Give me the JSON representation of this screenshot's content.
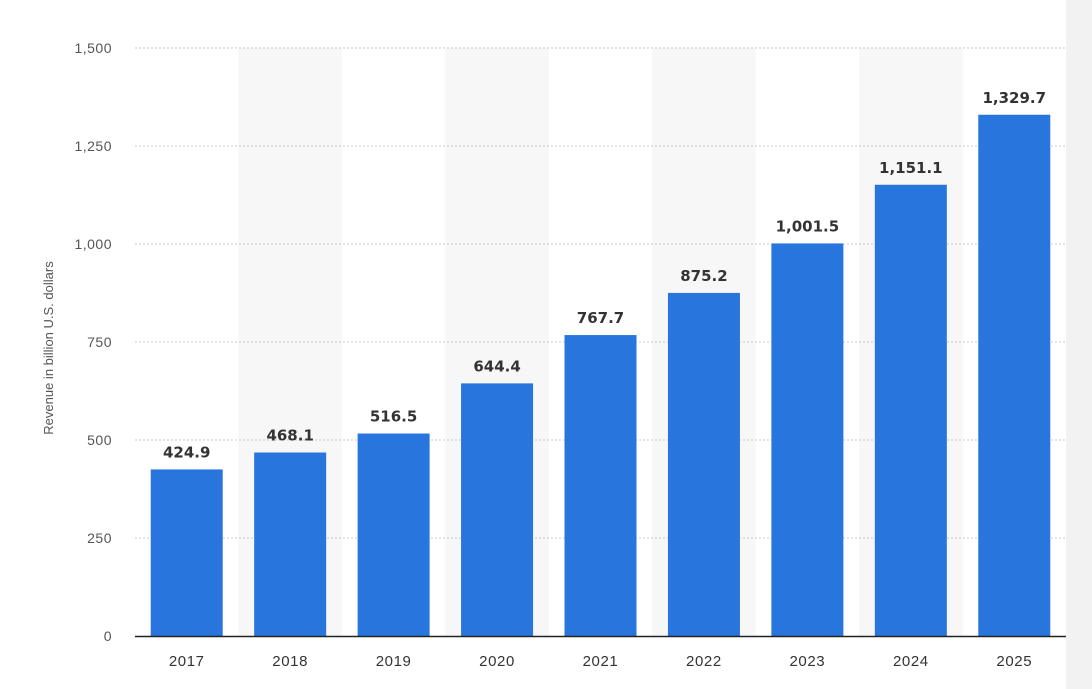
{
  "chart_data": {
    "type": "bar",
    "categories": [
      "2017",
      "2018",
      "2019",
      "2020",
      "2021",
      "2022",
      "2023",
      "2024",
      "2025"
    ],
    "values": [
      424.9,
      468.1,
      516.5,
      644.4,
      767.7,
      875.2,
      1001.5,
      1151.1,
      1329.7
    ],
    "value_labels": [
      "424.9",
      "468.1",
      "516.5",
      "644.4",
      "767.7",
      "875.2",
      "1,001.5",
      "1,151.1",
      "1,329.7"
    ],
    "title": "",
    "xlabel": "",
    "ylabel": "Revenue in billion U.S. dollars",
    "ylim": [
      0,
      1500
    ],
    "yticks": [
      0,
      250,
      500,
      750,
      1000,
      1250,
      1500
    ],
    "ytick_labels": [
      "0",
      "250",
      "500",
      "750",
      "1,000",
      "1,250",
      "1,500"
    ],
    "grid": true,
    "legend": "none",
    "colors": {
      "bar": "#2876dd",
      "band": "#f7f7f7",
      "grid": "#c8c8c8",
      "axis": "#222222"
    }
  }
}
